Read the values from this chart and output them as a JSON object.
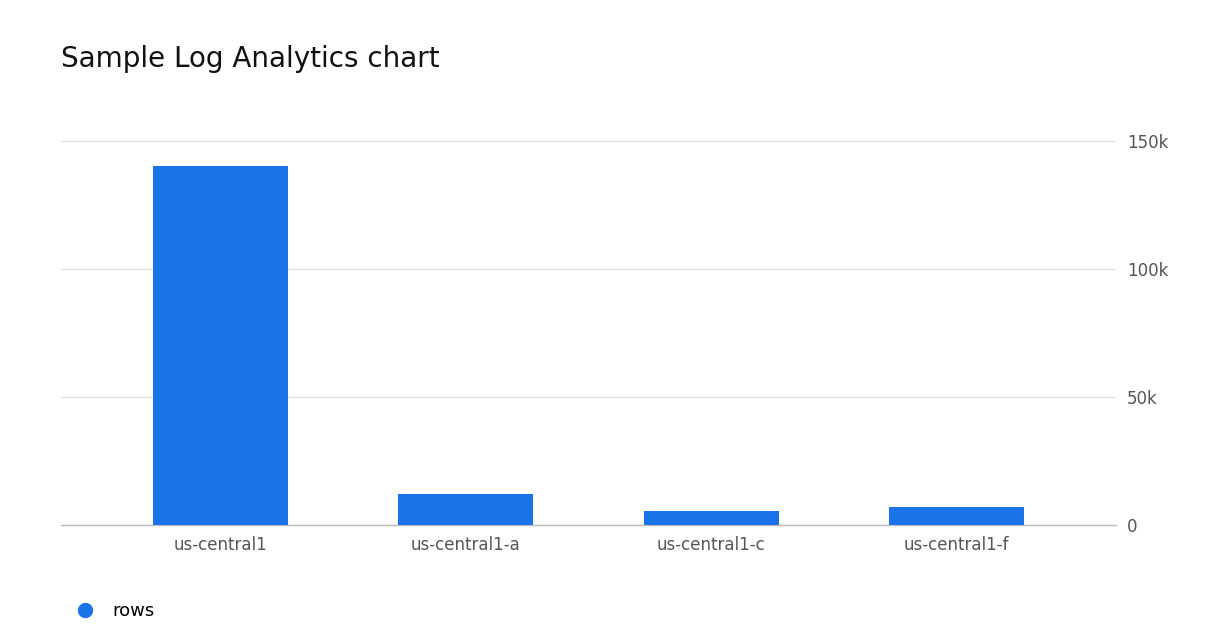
{
  "title": "Sample Log Analytics chart",
  "categories": [
    "us-central1",
    "us-central1-a",
    "us-central1-c",
    "us-central1-f"
  ],
  "values": [
    140000,
    12000,
    5500,
    7000
  ],
  "bar_color": "#1A73E8",
  "yticks": [
    0,
    50000,
    100000,
    150000
  ],
  "ytick_labels": [
    "0",
    "50k",
    "100k",
    "150k"
  ],
  "ylim": [
    0,
    160000
  ],
  "legend_label": "rows",
  "legend_color": "#1A73E8",
  "background_color": "#ffffff",
  "grid_color": "#dddddd",
  "title_fontsize": 20,
  "xtick_fontsize": 12,
  "ytick_fontsize": 12,
  "legend_fontsize": 13,
  "bar_width": 0.55,
  "xlim_left": -0.65,
  "xlim_right": 3.65
}
